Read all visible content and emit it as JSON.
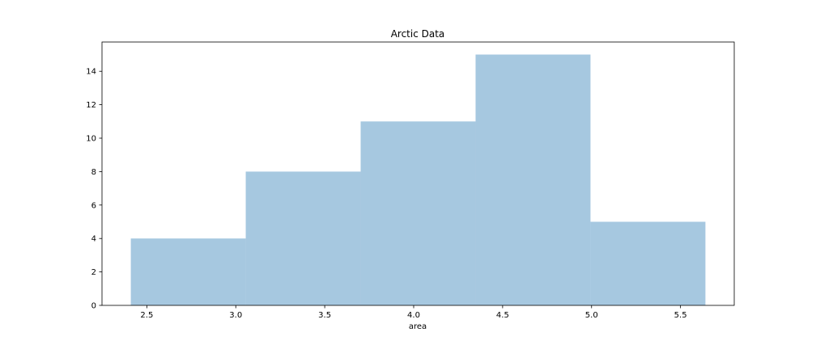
{
  "chart_data": {
    "type": "bar",
    "title": "Arctic Data",
    "xlabel": "area",
    "ylabel": "",
    "bin_edges": [
      2.41,
      3.056,
      3.702,
      4.348,
      4.994,
      5.64
    ],
    "counts": [
      4,
      8,
      11,
      15,
      5
    ],
    "xlim": [
      2.248,
      5.802
    ],
    "ylim": [
      0,
      15.75
    ],
    "x_ticks": [
      2.5,
      3.0,
      3.5,
      4.0,
      4.5,
      5.0,
      5.5
    ],
    "x_tick_labels": [
      "2.5",
      "3.0",
      "3.5",
      "4.0",
      "4.5",
      "5.0",
      "5.5"
    ],
    "y_ticks": [
      0,
      2,
      4,
      6,
      8,
      10,
      12,
      14
    ],
    "y_tick_labels": [
      "0",
      "2",
      "4",
      "6",
      "8",
      "10",
      "12",
      "14"
    ],
    "bar_color": "#a6c8e0",
    "grid": false,
    "legend": "none"
  }
}
